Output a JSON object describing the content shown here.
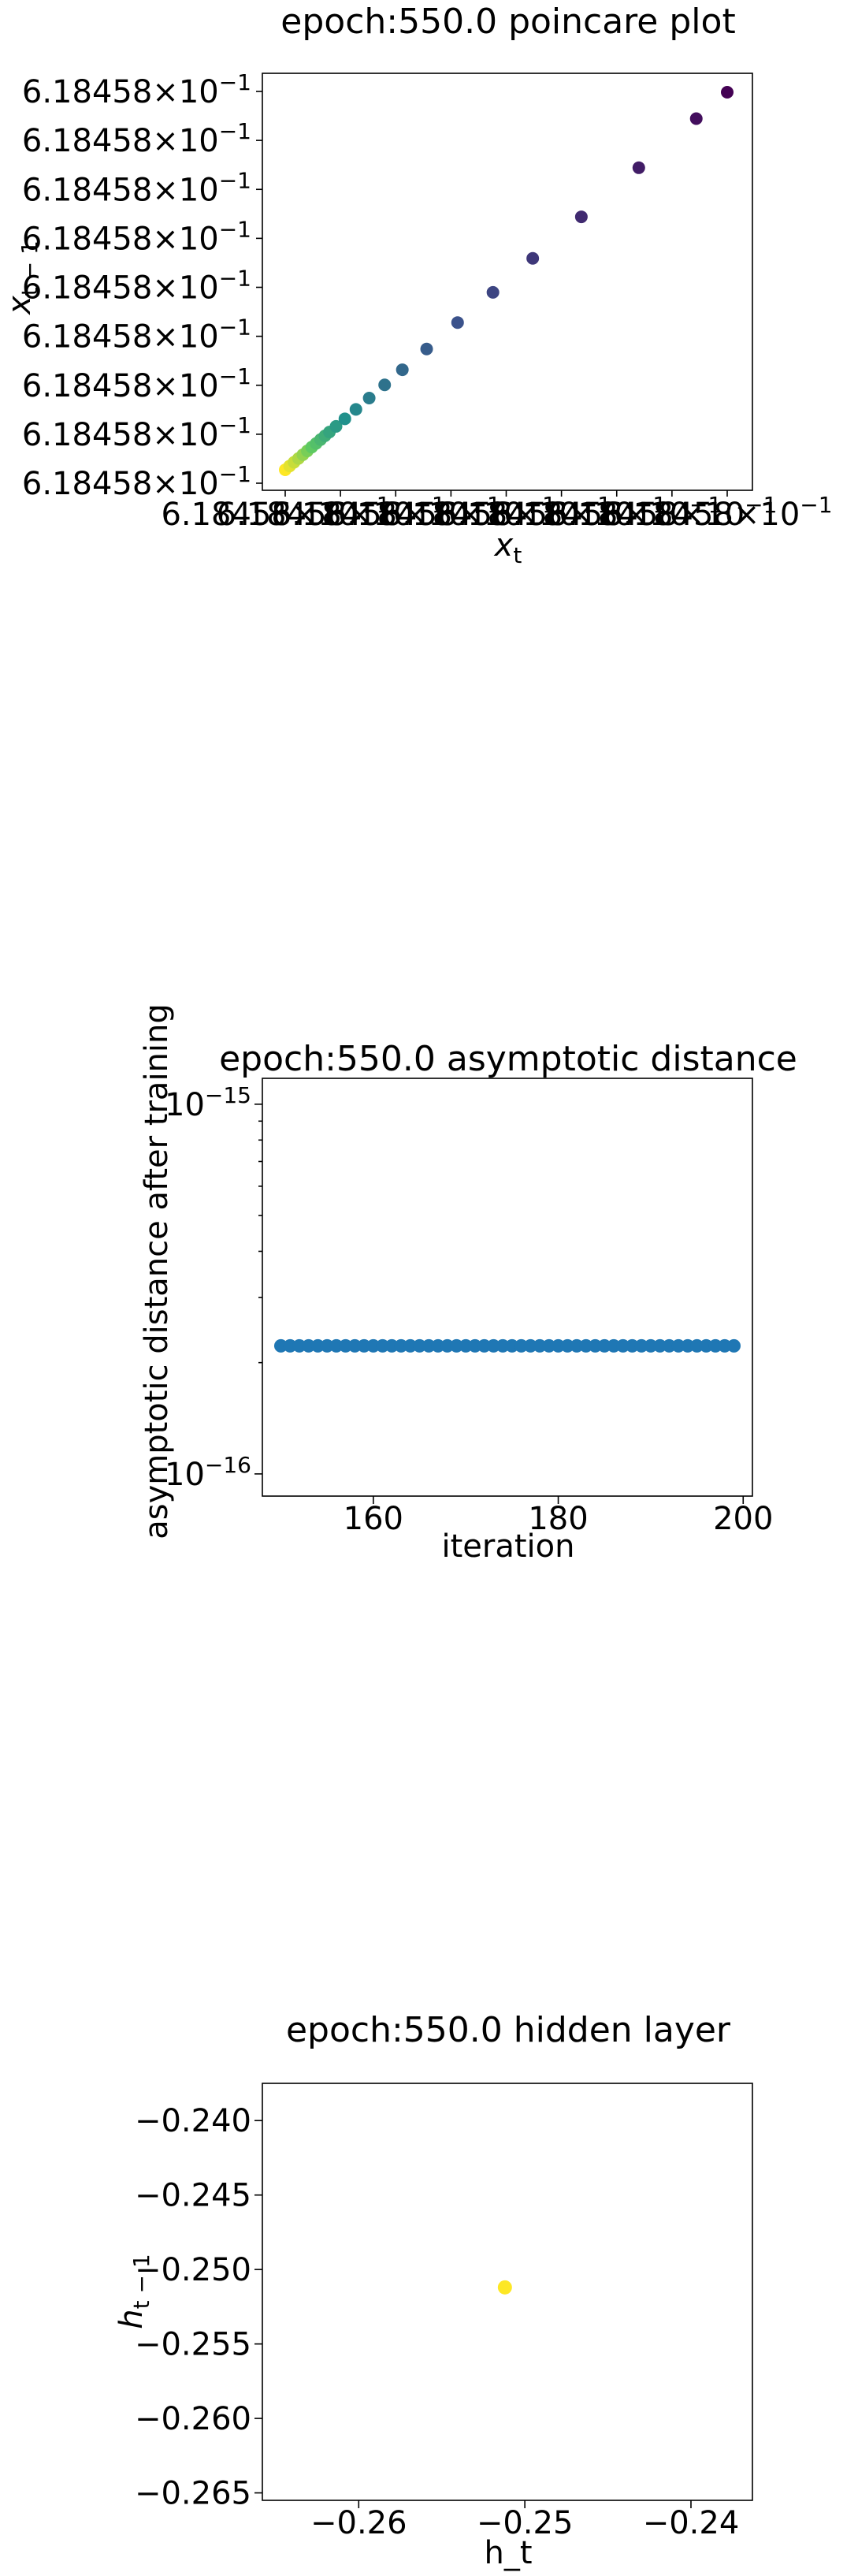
{
  "chart_data": [
    {
      "type": "scatter",
      "title": "epoch:550.0 poincare plot",
      "xlabel": "x_t",
      "ylabel": "x_{t-1}",
      "y_tick_labels": [
        "6.18458",
        "6.18458",
        "6.18458",
        "6.18458",
        "6.18458",
        "6.18458",
        "6.18458",
        "6.18458",
        "6.18458"
      ],
      "tick_base_label": "×10",
      "tick_exp_label": "−1",
      "x_tick_labels": [
        "6.18458",
        "6.18458",
        "6.18458",
        "6.18458",
        "6.18458",
        "6.18458",
        "6.18458",
        "6.18458",
        "6.18458"
      ],
      "colormap": "viridis",
      "series": [
        {
          "x": [
            0.0,
            0.01,
            0.02,
            0.03,
            0.04,
            0.05,
            0.06,
            0.07,
            0.08,
            0.09,
            0.1,
            0.115,
            0.135,
            0.16,
            0.19,
            0.225,
            0.265,
            0.32,
            0.39,
            0.47,
            0.56,
            0.67,
            0.8,
            0.93,
            1.0
          ],
          "y": [
            0.0,
            0.01,
            0.02,
            0.03,
            0.04,
            0.05,
            0.06,
            0.07,
            0.08,
            0.09,
            0.1,
            0.115,
            0.135,
            0.16,
            0.19,
            0.225,
            0.265,
            0.32,
            0.39,
            0.47,
            0.56,
            0.67,
            0.8,
            0.93,
            1.0
          ]
        }
      ],
      "grid": false
    },
    {
      "type": "scatter",
      "title": "epoch:550.0 asymptotic distance",
      "xlabel": "iteration",
      "ylabel": "asymptotic distance after training",
      "yscale": "log",
      "xlim": [
        148,
        201
      ],
      "ylim_exp": [
        -16.06,
        -14.93
      ],
      "x_ticks": [
        160,
        180,
        200
      ],
      "y_tick_base": "10",
      "y_ticks": [
        {
          "exponent_value": -15,
          "exponent_label": "−15"
        },
        {
          "exponent_value": -16,
          "exponent_label": "−16"
        }
      ],
      "series": [
        {
          "color": "#1f77b4",
          "x": [
            150,
            151,
            152,
            153,
            154,
            155,
            156,
            157,
            158,
            159,
            160,
            161,
            162,
            163,
            164,
            165,
            166,
            167,
            168,
            169,
            170,
            171,
            172,
            173,
            174,
            175,
            176,
            177,
            178,
            179,
            180,
            181,
            182,
            183,
            184,
            185,
            186,
            187,
            188,
            189,
            190,
            191,
            192,
            193,
            194,
            195,
            196,
            197,
            198,
            199
          ],
          "y": [
            2.22e-16,
            2.22e-16,
            2.22e-16,
            2.22e-16,
            2.22e-16,
            2.22e-16,
            2.22e-16,
            2.22e-16,
            2.22e-16,
            2.22e-16,
            2.22e-16,
            2.22e-16,
            2.22e-16,
            2.22e-16,
            2.22e-16,
            2.22e-16,
            2.22e-16,
            2.22e-16,
            2.22e-16,
            2.22e-16,
            2.22e-16,
            2.22e-16,
            2.22e-16,
            2.22e-16,
            2.22e-16,
            2.22e-16,
            2.22e-16,
            2.22e-16,
            2.22e-16,
            2.22e-16,
            2.22e-16,
            2.22e-16,
            2.22e-16,
            2.22e-16,
            2.22e-16,
            2.22e-16,
            2.22e-16,
            2.22e-16,
            2.22e-16,
            2.22e-16,
            2.22e-16,
            2.22e-16,
            2.22e-16,
            2.22e-16,
            2.22e-16,
            2.22e-16,
            2.22e-16,
            2.22e-16,
            2.22e-16,
            2.22e-16
          ]
        }
      ],
      "grid": false
    },
    {
      "type": "scatter",
      "title": "epoch:550.0 hidden layer",
      "xlabel": "h_t",
      "ylabel": "h_{t-1}",
      "xlim": [
        -0.2658,
        -0.2363
      ],
      "ylim": [
        -0.2655,
        -0.2375
      ],
      "x_ticks": [
        {
          "value": -0.26,
          "label": "−0.26"
        },
        {
          "value": -0.25,
          "label": "−0.25"
        },
        {
          "value": -0.24,
          "label": "−0.24"
        }
      ],
      "y_ticks": [
        {
          "value": -0.24,
          "label": "−0.240"
        },
        {
          "value": -0.245,
          "label": "−0.245"
        },
        {
          "value": -0.25,
          "label": "−0.250"
        },
        {
          "value": -0.255,
          "label": "−0.255"
        },
        {
          "value": -0.26,
          "label": "−0.260"
        },
        {
          "value": -0.265,
          "label": "−0.265"
        }
      ],
      "series": [
        {
          "color": "#fde725",
          "x": [
            -0.2512
          ],
          "y": [
            -0.2512
          ]
        }
      ],
      "grid": false
    }
  ]
}
